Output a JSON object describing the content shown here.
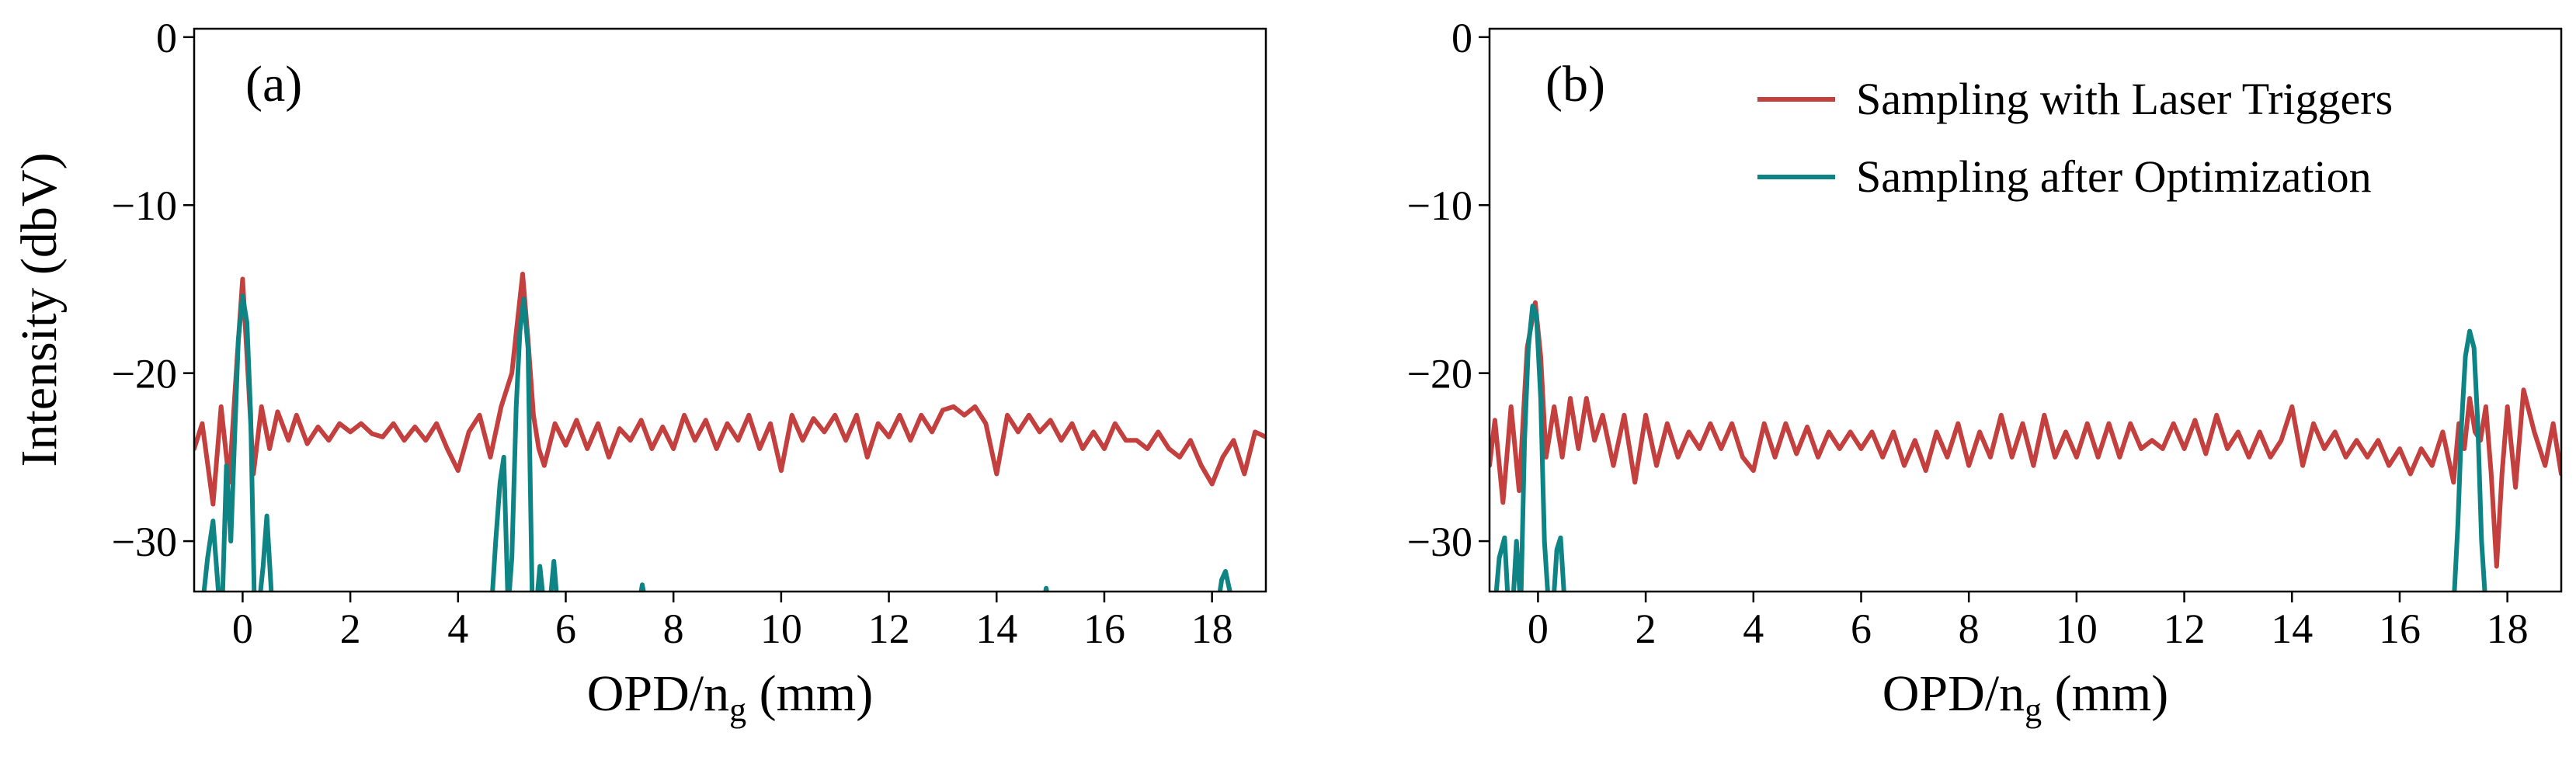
{
  "legend": {
    "items": [
      {
        "label": "Sampling with Laser Triggers",
        "color": "#c4403f"
      },
      {
        "label": "Sampling after Optimization",
        "color": "#0f8484"
      }
    ]
  },
  "chart_data": [
    {
      "type": "line",
      "panel_label": "(a)",
      "xlabel_main": "OPD/n",
      "xlabel_sub": "g",
      "xlabel_unit": " (mm)",
      "ylabel": "Intensity (dbV)",
      "xlim": [
        -0.9,
        19.0
      ],
      "ylim": [
        -33,
        0.5
      ],
      "xticks": [
        0,
        2,
        4,
        6,
        8,
        10,
        12,
        14,
        16,
        18
      ],
      "yticks": [
        0,
        -10,
        -20,
        -30
      ],
      "ytick_labels": [
        "0",
        "−10",
        "−20",
        "−30"
      ],
      "grid": false,
      "legend": "none",
      "series": [
        {
          "name": "Sampling with Laser Triggers",
          "color": "#c4403f",
          "x": [
            -0.9,
            -0.75,
            -0.55,
            -0.4,
            -0.25,
            -0.1,
            0.0,
            0.1,
            0.2,
            0.35,
            0.5,
            0.65,
            0.85,
            1.0,
            1.2,
            1.4,
            1.6,
            1.8,
            2.0,
            2.2,
            2.4,
            2.6,
            2.8,
            3.0,
            3.2,
            3.4,
            3.6,
            3.8,
            4.0,
            4.2,
            4.4,
            4.6,
            4.8,
            5.0,
            5.1,
            5.2,
            5.3,
            5.4,
            5.5,
            5.6,
            5.8,
            6.0,
            6.2,
            6.4,
            6.6,
            6.8,
            7.0,
            7.2,
            7.4,
            7.6,
            7.8,
            8.0,
            8.2,
            8.4,
            8.6,
            8.8,
            9.0,
            9.2,
            9.4,
            9.6,
            9.8,
            10.0,
            10.2,
            10.4,
            10.6,
            10.8,
            11.0,
            11.2,
            11.4,
            11.6,
            11.8,
            12.0,
            12.2,
            12.4,
            12.6,
            12.8,
            13.0,
            13.2,
            13.4,
            13.6,
            13.8,
            14.0,
            14.2,
            14.4,
            14.6,
            14.8,
            15.0,
            15.2,
            15.4,
            15.6,
            15.8,
            16.0,
            16.2,
            16.4,
            16.6,
            16.8,
            17.0,
            17.2,
            17.4,
            17.6,
            17.8,
            18.0,
            18.2,
            18.4,
            18.6,
            18.8,
            19.0
          ],
          "y": [
            -24.5,
            -23.0,
            -27.8,
            -22.0,
            -26.5,
            -19.0,
            -14.4,
            -20.0,
            -26.0,
            -22.0,
            -24.5,
            -22.3,
            -24.0,
            -22.5,
            -24.2,
            -23.2,
            -24.0,
            -23.0,
            -23.5,
            -23.0,
            -23.6,
            -23.8,
            -23.0,
            -24.0,
            -23.2,
            -24.0,
            -23.0,
            -24.5,
            -25.8,
            -23.5,
            -22.5,
            -25.0,
            -22.0,
            -20.0,
            -17.0,
            -14.1,
            -18.0,
            -22.5,
            -24.5,
            -25.5,
            -23.0,
            -24.3,
            -22.8,
            -24.5,
            -23.0,
            -25.0,
            -23.3,
            -24.0,
            -22.8,
            -24.5,
            -23.2,
            -24.5,
            -22.5,
            -24.0,
            -22.8,
            -24.5,
            -23.0,
            -24.0,
            -22.5,
            -24.5,
            -23.0,
            -25.8,
            -22.5,
            -24.0,
            -22.7,
            -23.5,
            -22.5,
            -24.0,
            -22.5,
            -25.0,
            -23.0,
            -23.8,
            -22.5,
            -24.0,
            -22.5,
            -23.5,
            -22.2,
            -22.0,
            -22.5,
            -22.0,
            -23.0,
            -26.0,
            -22.5,
            -23.5,
            -22.5,
            -23.5,
            -22.8,
            -24.0,
            -23.0,
            -24.5,
            -23.5,
            -24.5,
            -23.0,
            -24.0,
            -24.0,
            -24.5,
            -23.5,
            -24.5,
            -25.0,
            -24.0,
            -25.5,
            -26.6,
            -25.0,
            -24.0,
            -26.0,
            -23.5,
            -23.8
          ]
        },
        {
          "name": "Sampling after Optimization",
          "color": "#0f8484",
          "x": [
            -0.75,
            -0.65,
            -0.55,
            -0.45,
            -0.38,
            -0.3,
            -0.22,
            -0.15,
            -0.08,
            0.0,
            0.08,
            0.15,
            0.22,
            0.3,
            0.38,
            0.45,
            0.55,
            null,
            4.55,
            4.62,
            4.7,
            4.78,
            4.85,
            4.93,
            5.0,
            5.08,
            5.15,
            5.22,
            5.3,
            5.38,
            5.45,
            5.52,
            5.6,
            5.7,
            5.78,
            5.85,
            5.95,
            null,
            7.35,
            7.42,
            7.5,
            null,
            14.85,
            14.92,
            15.0,
            null,
            18.1,
            18.18,
            18.25,
            18.32,
            18.4
          ],
          "y": [
            -34,
            -31,
            -28.8,
            -33,
            -34,
            -25.5,
            -30,
            -24.0,
            -18.0,
            -15.4,
            -17.0,
            -22.5,
            -34,
            -34,
            -31.5,
            -28.5,
            -34,
            null,
            -34,
            -34,
            -30.0,
            -26.5,
            -25.0,
            -34,
            -31.0,
            -22.0,
            -17.5,
            -15.6,
            -18.5,
            -34,
            -34,
            -31.5,
            -34,
            -34,
            -31.2,
            -34,
            -34,
            null,
            -34,
            -32.6,
            -34,
            null,
            -34,
            -32.8,
            -34,
            null,
            -34,
            -32.3,
            -31.8,
            -32.8,
            -34
          ]
        }
      ]
    },
    {
      "type": "line",
      "panel_label": "(b)",
      "xlabel_main": "OPD/n",
      "xlabel_sub": "g",
      "xlabel_unit": " (mm)",
      "ylabel": "",
      "xlim": [
        -0.9,
        19.0
      ],
      "ylim": [
        -33,
        0.5
      ],
      "xticks": [
        0,
        2,
        4,
        6,
        8,
        10,
        12,
        14,
        16,
        18
      ],
      "yticks": [
        0,
        -10,
        -20,
        -30
      ],
      "ytick_labels": [
        "0",
        "−10",
        "−20",
        "−30"
      ],
      "grid": false,
      "legend": "top-right",
      "series": [
        {
          "name": "Sampling with Laser Triggers",
          "color": "#c4403f",
          "x": [
            -0.9,
            -0.8,
            -0.65,
            -0.5,
            -0.35,
            -0.2,
            -0.05,
            0.05,
            0.15,
            0.3,
            0.45,
            0.6,
            0.75,
            0.9,
            1.05,
            1.2,
            1.4,
            1.6,
            1.8,
            2.0,
            2.2,
            2.4,
            2.6,
            2.8,
            3.0,
            3.2,
            3.4,
            3.6,
            3.8,
            4.0,
            4.2,
            4.4,
            4.6,
            4.8,
            5.0,
            5.2,
            5.4,
            5.6,
            5.8,
            6.0,
            6.2,
            6.4,
            6.6,
            6.8,
            7.0,
            7.2,
            7.4,
            7.6,
            7.8,
            8.0,
            8.2,
            8.4,
            8.6,
            8.8,
            9.0,
            9.2,
            9.4,
            9.6,
            9.8,
            10.0,
            10.2,
            10.4,
            10.6,
            10.8,
            11.0,
            11.2,
            11.4,
            11.6,
            11.8,
            12.0,
            12.2,
            12.4,
            12.6,
            12.8,
            13.0,
            13.2,
            13.4,
            13.6,
            13.8,
            14.0,
            14.2,
            14.4,
            14.6,
            14.8,
            15.0,
            15.2,
            15.4,
            15.6,
            15.8,
            16.0,
            16.2,
            16.4,
            16.6,
            16.8,
            17.0,
            17.1,
            17.2,
            17.3,
            17.4,
            17.5,
            17.6,
            17.7,
            17.8,
            17.9,
            18.0,
            18.15,
            18.3,
            18.5,
            18.7,
            18.85,
            19.0
          ],
          "y": [
            -25.5,
            -22.8,
            -27.7,
            -22.0,
            -27.0,
            -18.5,
            -15.8,
            -19.0,
            -25.0,
            -22.0,
            -25.0,
            -21.5,
            -24.5,
            -21.5,
            -24.0,
            -22.5,
            -25.5,
            -22.5,
            -26.5,
            -22.5,
            -25.5,
            -23.0,
            -25.0,
            -23.5,
            -24.5,
            -23.0,
            -24.5,
            -23.0,
            -25.0,
            -25.8,
            -23.0,
            -25.0,
            -23.0,
            -24.8,
            -23.2,
            -25.0,
            -23.5,
            -24.5,
            -23.5,
            -24.5,
            -23.5,
            -25.0,
            -23.5,
            -25.5,
            -24.0,
            -25.8,
            -23.5,
            -25.0,
            -23.0,
            -25.5,
            -23.5,
            -25.0,
            -22.5,
            -25.0,
            -23.0,
            -25.5,
            -22.5,
            -25.0,
            -23.5,
            -25.0,
            -23.0,
            -25.0,
            -23.0,
            -25.0,
            -23.0,
            -24.5,
            -24.0,
            -24.5,
            -23.0,
            -24.5,
            -22.8,
            -24.8,
            -22.5,
            -24.5,
            -23.5,
            -25.0,
            -23.5,
            -25.0,
            -24.0,
            -22.0,
            -25.5,
            -23.0,
            -24.5,
            -23.5,
            -25.0,
            -24.0,
            -25.0,
            -24.0,
            -25.5,
            -24.5,
            -26.0,
            -24.5,
            -25.5,
            -23.5,
            -26.5,
            -23.0,
            -24.5,
            -21.5,
            -23.5,
            -24.0,
            -22.0,
            -26.0,
            -31.5,
            -26.0,
            -22.0,
            -26.8,
            -21.0,
            -23.5,
            -25.5,
            -23.0,
            -26.0
          ]
        },
        {
          "name": "Sampling after Optimization",
          "color": "#0f8484",
          "x": [
            -0.8,
            -0.72,
            -0.62,
            -0.55,
            -0.47,
            -0.4,
            -0.32,
            -0.25,
            -0.18,
            -0.1,
            -0.03,
            0.05,
            0.12,
            0.2,
            0.28,
            0.35,
            0.42,
            0.5,
            0.6,
            null,
            17.0,
            17.08,
            17.15,
            17.22,
            17.3,
            17.38,
            17.45,
            17.52,
            17.6,
            17.68,
            17.75
          ],
          "y": [
            -34,
            -31.0,
            -29.8,
            -34,
            -34,
            -30.0,
            -34,
            -24.0,
            -18.5,
            -16.0,
            -16.5,
            -21.5,
            -30.0,
            -34,
            -34,
            -30.5,
            -29.8,
            -34,
            -34,
            null,
            -34,
            -29.0,
            -23.0,
            -19.0,
            -17.5,
            -18.5,
            -23.0,
            -30.0,
            -34,
            -34,
            -34
          ]
        }
      ]
    }
  ]
}
